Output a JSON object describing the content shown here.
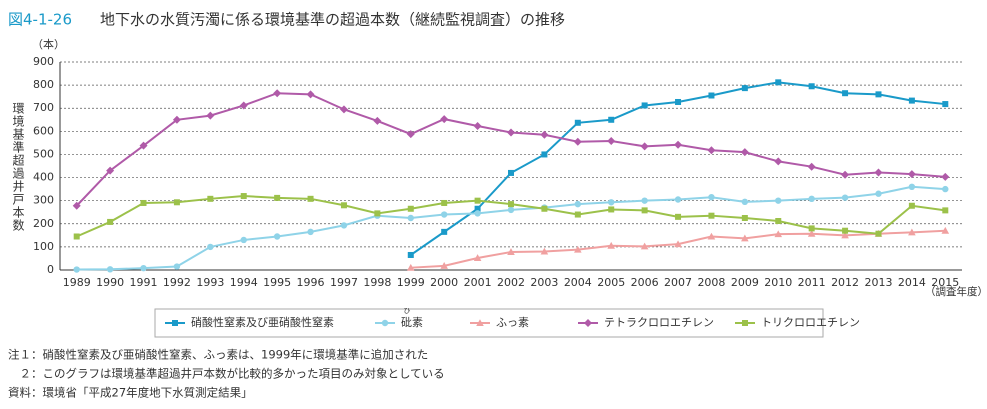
{
  "chart_data": {
    "type": "line",
    "figure_number": "図4-1-26",
    "title": "地下水の水質汚濁に係る環境基準の超過本数（継続監視調査）の推移",
    "y_unit": "（本）",
    "y_label": "環境基準超過井戸本数",
    "x_unit": "（調査年度）",
    "categories": [
      "1989",
      "1990",
      "1991",
      "1992",
      "1993",
      "1994",
      "1995",
      "1996",
      "1997",
      "1998",
      "1999",
      "2000",
      "2001",
      "2002",
      "2003",
      "2004",
      "2005",
      "2006",
      "2007",
      "2008",
      "2009",
      "2010",
      "2011",
      "2012",
      "2013",
      "2014",
      "2015"
    ],
    "ylim": [
      0,
      900
    ],
    "yticks": [
      0,
      100,
      200,
      300,
      400,
      500,
      600,
      700,
      800,
      900
    ],
    "grid": true,
    "series": [
      {
        "name": "硝酸性窒素及び亜硝酸性窒素",
        "color": "#1a9ac9",
        "marker": "square",
        "values": [
          null,
          null,
          null,
          null,
          null,
          null,
          null,
          null,
          null,
          null,
          65,
          165,
          265,
          420,
          500,
          637,
          650,
          712,
          727,
          755,
          787,
          812,
          795,
          765,
          760,
          733,
          718
        ]
      },
      {
        "name": "砒素",
        "ruby": "ひ",
        "color": "#8fd3e8",
        "marker": "circle",
        "values": [
          2,
          3,
          8,
          15,
          100,
          130,
          145,
          165,
          193,
          235,
          225,
          240,
          245,
          260,
          270,
          285,
          293,
          300,
          305,
          315,
          295,
          300,
          308,
          313,
          330,
          360,
          350
        ]
      },
      {
        "name": "ふっ素",
        "color": "#f0a0a0",
        "marker": "triangle",
        "values": [
          null,
          null,
          null,
          null,
          null,
          null,
          null,
          null,
          null,
          null,
          10,
          18,
          52,
          78,
          80,
          88,
          105,
          102,
          112,
          145,
          137,
          155,
          157,
          150,
          157,
          163,
          170
        ]
      },
      {
        "name": "テトラクロロエチレン",
        "color": "#b05aa8",
        "marker": "diamond",
        "values": [
          278,
          430,
          538,
          650,
          668,
          712,
          765,
          760,
          695,
          645,
          588,
          653,
          623,
          595,
          585,
          555,
          558,
          535,
          542,
          518,
          510,
          470,
          447,
          412,
          422,
          415,
          403
        ]
      },
      {
        "name": "トリクロロエチレン",
        "color": "#9cc14a",
        "marker": "square",
        "values": [
          145,
          208,
          290,
          293,
          308,
          320,
          312,
          308,
          280,
          245,
          265,
          290,
          300,
          285,
          265,
          240,
          262,
          258,
          230,
          235,
          225,
          212,
          180,
          170,
          157,
          278,
          258
        ]
      }
    ],
    "notes": [
      "注１：硝酸性窒素及び亜硝酸性窒素、ふっ素は、1999年に環境基準に追加された",
      "　２：このグラフは環境基準超過井戸本数が比較的多かった項目のみ対象としている",
      "資料：環境省「平成27年度地下水質測定結果」"
    ]
  }
}
